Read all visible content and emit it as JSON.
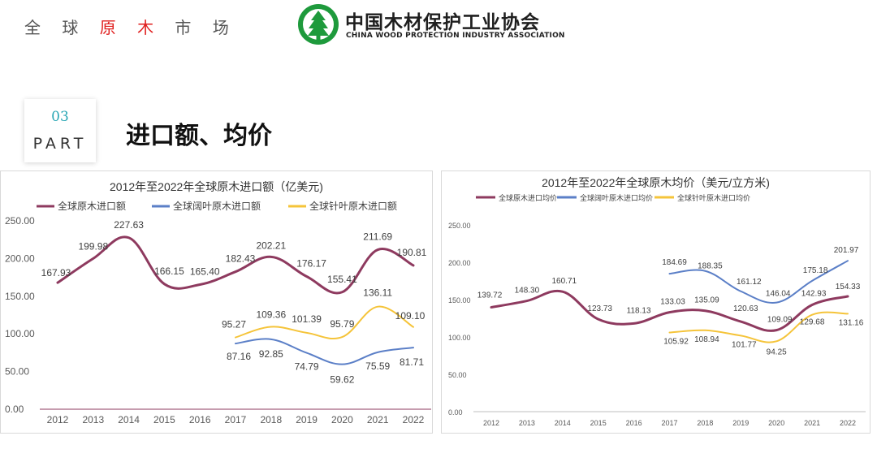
{
  "header": {
    "title_parts": [
      "全 球 ",
      "原 木",
      " 市 场"
    ],
    "logo_cn": "中国木材保护工业协会",
    "logo_en": "CHINA WOOD PROTECTION INDUSTRY ASSOCIATION",
    "logo_icon": "pine-tree-emblem-icon"
  },
  "section": {
    "part_number": "03",
    "part_label": "PART",
    "title": "进口额、均价"
  },
  "colors": {
    "total": "#8e3a5f",
    "broadleaf": "#5b7fc7",
    "conifer": "#f5c43a",
    "part_accent": "#2aa7b5",
    "highlight_red": "#e0201f"
  },
  "chart_data": [
    {
      "type": "line",
      "title": "2012年至2022年全球原木进口额（亿美元)",
      "categories": [
        "2012",
        "2013",
        "2014",
        "2015",
        "2016",
        "2017",
        "2018",
        "2019",
        "2020",
        "2021",
        "2022"
      ],
      "ylim": [
        0,
        250
      ],
      "yticks": [
        "0.00",
        "50.00",
        "100.00",
        "150.00",
        "200.00",
        "250.00"
      ],
      "grid": false,
      "legend_position": "top",
      "series": [
        {
          "name": "全球原木进口额",
          "color": "#8e3a5f",
          "values": [
            167.93,
            199.98,
            227.63,
            166.15,
            165.4,
            182.43,
            202.21,
            176.17,
            155.41,
            211.69,
            190.81
          ]
        },
        {
          "name": "全球阔叶原木进口额",
          "color": "#5b7fc7",
          "values": [
            null,
            null,
            null,
            null,
            null,
            87.16,
            92.85,
            74.79,
            59.62,
            75.59,
            81.71
          ]
        },
        {
          "name": "全球针叶原木进口额",
          "color": "#f5c43a",
          "values": [
            null,
            null,
            null,
            null,
            null,
            95.27,
            109.36,
            101.39,
            95.79,
            136.11,
            109.1
          ]
        }
      ]
    },
    {
      "type": "line",
      "title": "2012年至2022年全球原木均价（美元/立方米)",
      "categories": [
        "2012",
        "2013",
        "2014",
        "2015",
        "2016",
        "2017",
        "2018",
        "2019",
        "2020",
        "2021",
        "2022"
      ],
      "ylim": [
        0,
        250
      ],
      "yticks": [
        "0.00",
        "50.00",
        "100.00",
        "150.00",
        "200.00",
        "250.00"
      ],
      "grid": false,
      "legend_position": "top-left",
      "series": [
        {
          "name": "全球原木进口均价",
          "color": "#8e3a5f",
          "values": [
            139.72,
            148.3,
            160.71,
            123.73,
            118.13,
            133.03,
            135.09,
            120.63,
            109.09,
            142.93,
            154.33
          ]
        },
        {
          "name": "全球阔叶原木进口均价",
          "color": "#5b7fc7",
          "values": [
            null,
            null,
            null,
            null,
            null,
            184.69,
            188.35,
            161.12,
            146.04,
            175.18,
            201.97
          ]
        },
        {
          "name": "全球针叶原木进口均价",
          "color": "#f5c43a",
          "values": [
            null,
            null,
            null,
            null,
            null,
            105.92,
            108.94,
            101.77,
            94.25,
            129.68,
            131.16
          ]
        }
      ]
    }
  ]
}
